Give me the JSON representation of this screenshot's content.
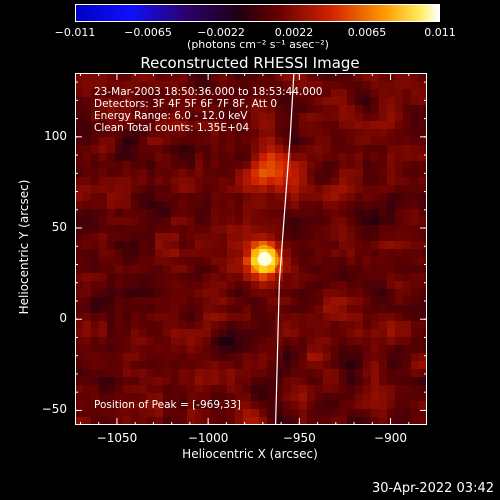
{
  "chart_data": {
    "type": "heatmap",
    "title": "Reconstructed RHESSI Image",
    "xlabel": "Heliocentric X (arcsec)",
    "ylabel": "Heliocentric Y (arcsec)",
    "xlim": [
      -1073,
      -880
    ],
    "ylim": [
      -58,
      135
    ],
    "xticks": [
      -1050,
      -1000,
      -950,
      -900
    ],
    "xtick_labels": [
      "−1050",
      "−1000",
      "−950",
      "−900"
    ],
    "yticks": [
      -50,
      0,
      50,
      100
    ],
    "ytick_labels": [
      "−50",
      "0",
      "50",
      "100"
    ],
    "colorbar": {
      "range": [
        -0.011,
        0.011
      ],
      "ticks": [
        -0.011,
        -0.0065,
        -0.0022,
        0.0022,
        0.0065,
        0.011
      ],
      "tick_labels": [
        "−0.011",
        "−0.0065",
        "−0.0022",
        "0.0022",
        "0.0065",
        "0.011"
      ],
      "unit_label": "(photons cm⁻² s⁻¹ asec⁻²)",
      "colors": [
        "#000080",
        "#0000ff",
        "#000000",
        "#cc0000",
        "#ff6600",
        "#ffcc00",
        "#ffffff"
      ]
    },
    "annotations": [
      "23-Mar-2003 18:50:36.000 to 18:53:44.000",
      "Detectors: 3F 4F 5F 6F 7F 8F, Att 0",
      "Energy Range: 6.0 - 12.0 keV",
      "Clean     Total counts: 1.35E+04"
    ],
    "peak_label": "Position of Peak = [-969,33]",
    "peak": {
      "x": -969,
      "y": 33,
      "value": 0.011
    },
    "secondary_source": {
      "x": -966,
      "y": 80,
      "value": 0.004
    },
    "limb_line": {
      "points": [
        [
          -953,
          135
        ],
        [
          -955,
          100
        ],
        [
          -958,
          60
        ],
        [
          -961,
          20
        ],
        [
          -962,
          -20
        ],
        [
          -963,
          -58
        ]
      ],
      "color": "#ffffff"
    }
  },
  "footer": {
    "date": "30-Apr-2022 03:42"
  }
}
